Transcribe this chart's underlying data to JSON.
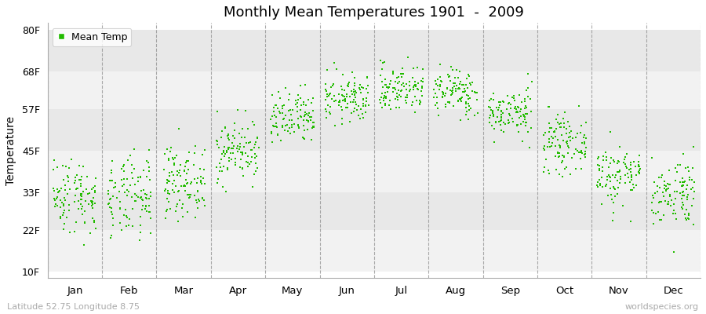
{
  "title": "Monthly Mean Temperatures 1901  -  2009",
  "ylabel": "Temperature",
  "xlabel_labels": [
    "Jan",
    "Feb",
    "Mar",
    "Apr",
    "May",
    "Jun",
    "Jul",
    "Aug",
    "Sep",
    "Oct",
    "Nov",
    "Dec"
  ],
  "footer_left": "Latitude 52.75 Longitude 8.75",
  "footer_right": "worldspecies.org",
  "legend_label": "Mean Temp",
  "dot_color": "#22bb00",
  "background_color": "#ffffff",
  "plot_bg_color": "#ffffff",
  "band_light": "#f2f2f2",
  "band_dark": "#e8e8e8",
  "ytick_labels": [
    "10F",
    "22F",
    "33F",
    "45F",
    "57F",
    "68F",
    "80F"
  ],
  "ytick_values": [
    10,
    22,
    33,
    45,
    57,
    68,
    80
  ],
  "ylim": [
    8,
    82
  ],
  "num_years": 109,
  "monthly_means_F": [
    32,
    31,
    36,
    45,
    54,
    60,
    63,
    62,
    56,
    47,
    38,
    33
  ],
  "monthly_stds_F": [
    5.5,
    6,
    5,
    4.5,
    4,
    3.5,
    3.5,
    3.5,
    3.5,
    4,
    4.5,
    5
  ],
  "xlim": [
    0,
    12
  ]
}
